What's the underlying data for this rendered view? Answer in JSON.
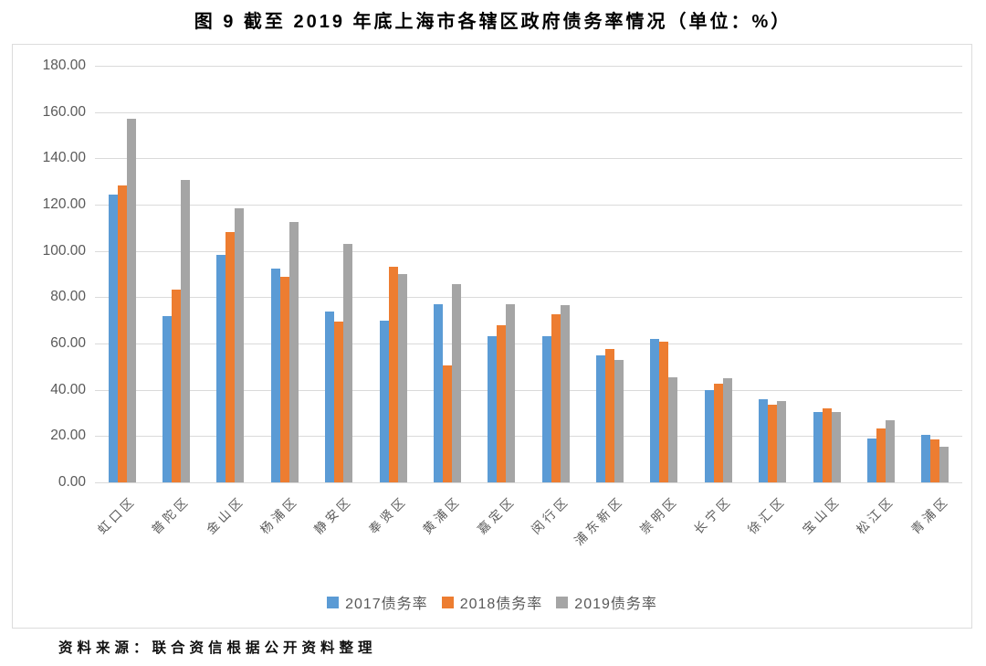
{
  "title": "图 9  截至 2019 年底上海市各辖区政府债务率情况（单位：%）",
  "source_note": "资料来源：联合资信根据公开资料整理",
  "chart_data": {
    "type": "bar",
    "title": "图 9  截至 2019 年底上海市各辖区政府债务率情况（单位：%）",
    "unit": "%",
    "categories": [
      "虹口区",
      "普陀区",
      "金山区",
      "杨浦区",
      "静安区",
      "奉贤区",
      "黄浦区",
      "嘉定区",
      "闵行区",
      "浦东新区",
      "崇明区",
      "长宁区",
      "徐汇区",
      "宝山区",
      "松江区",
      "青浦区"
    ],
    "series": [
      {
        "name": "2017债务率",
        "color": "#5B9BD5",
        "values": [
          124.5,
          72.0,
          98.5,
          92.5,
          74.0,
          70.0,
          77.0,
          63.0,
          63.0,
          55.0,
          62.0,
          40.0,
          36.0,
          30.5,
          19.0,
          20.5
        ]
      },
      {
        "name": "2018债务率",
        "color": "#ED7D31",
        "values": [
          128.5,
          83.5,
          108.0,
          89.0,
          69.5,
          93.0,
          50.5,
          68.0,
          72.5,
          57.5,
          61.0,
          42.5,
          33.5,
          32.0,
          23.5,
          18.5
        ]
      },
      {
        "name": "2019债务率",
        "color": "#A5A5A5",
        "values": [
          157.0,
          130.5,
          118.5,
          112.5,
          103.0,
          90.0,
          85.5,
          77.0,
          76.5,
          53.0,
          45.5,
          45.0,
          35.0,
          30.5,
          27.0,
          15.5
        ]
      }
    ],
    "ylim": [
      0,
      180
    ],
    "ytick_step": 20,
    "ytick_labels": [
      "180.00",
      "160.00",
      "140.00",
      "120.00",
      "100.00",
      "80.00",
      "60.00",
      "40.00",
      "20.00",
      "0.00"
    ],
    "grid": true,
    "legend_position": "bottom",
    "colors": {
      "gridline": "#DADADA",
      "axis_text": "#595959",
      "frame_border": "#DCDCDC"
    }
  }
}
